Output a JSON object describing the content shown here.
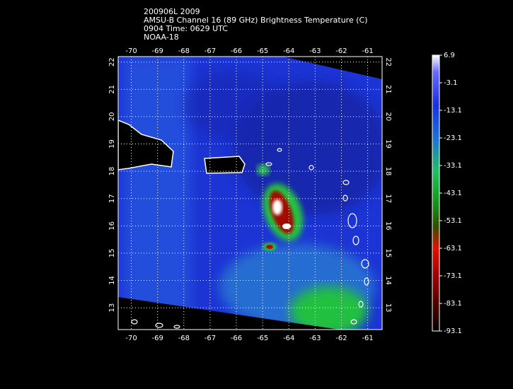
{
  "header": {
    "lines": [
      "200906L 2009",
      "AMSU-B Channel 16 (89 GHz) Brightness Temperature (C)",
      "0904 Time: 0629 UTC",
      "NOAA-18"
    ]
  },
  "map": {
    "lonlim": [
      -70.5,
      -60.45
    ],
    "latlim": [
      12.2,
      22.2
    ],
    "lonticks": [
      -70,
      -69,
      -68,
      -67,
      -66,
      -65,
      -64,
      -63,
      -62,
      -61
    ],
    "latticks": [
      13,
      14,
      15,
      16,
      17,
      18,
      19,
      20,
      21,
      22
    ]
  },
  "colorbar": {
    "lim": [
      6.9,
      -93.1
    ],
    "ticks": [
      6.9,
      -3.1,
      -13.1,
      -23.1,
      -33.1,
      -43.1,
      -53.1,
      -63.1,
      -73.1,
      -83.1,
      -93.1
    ]
  }
}
